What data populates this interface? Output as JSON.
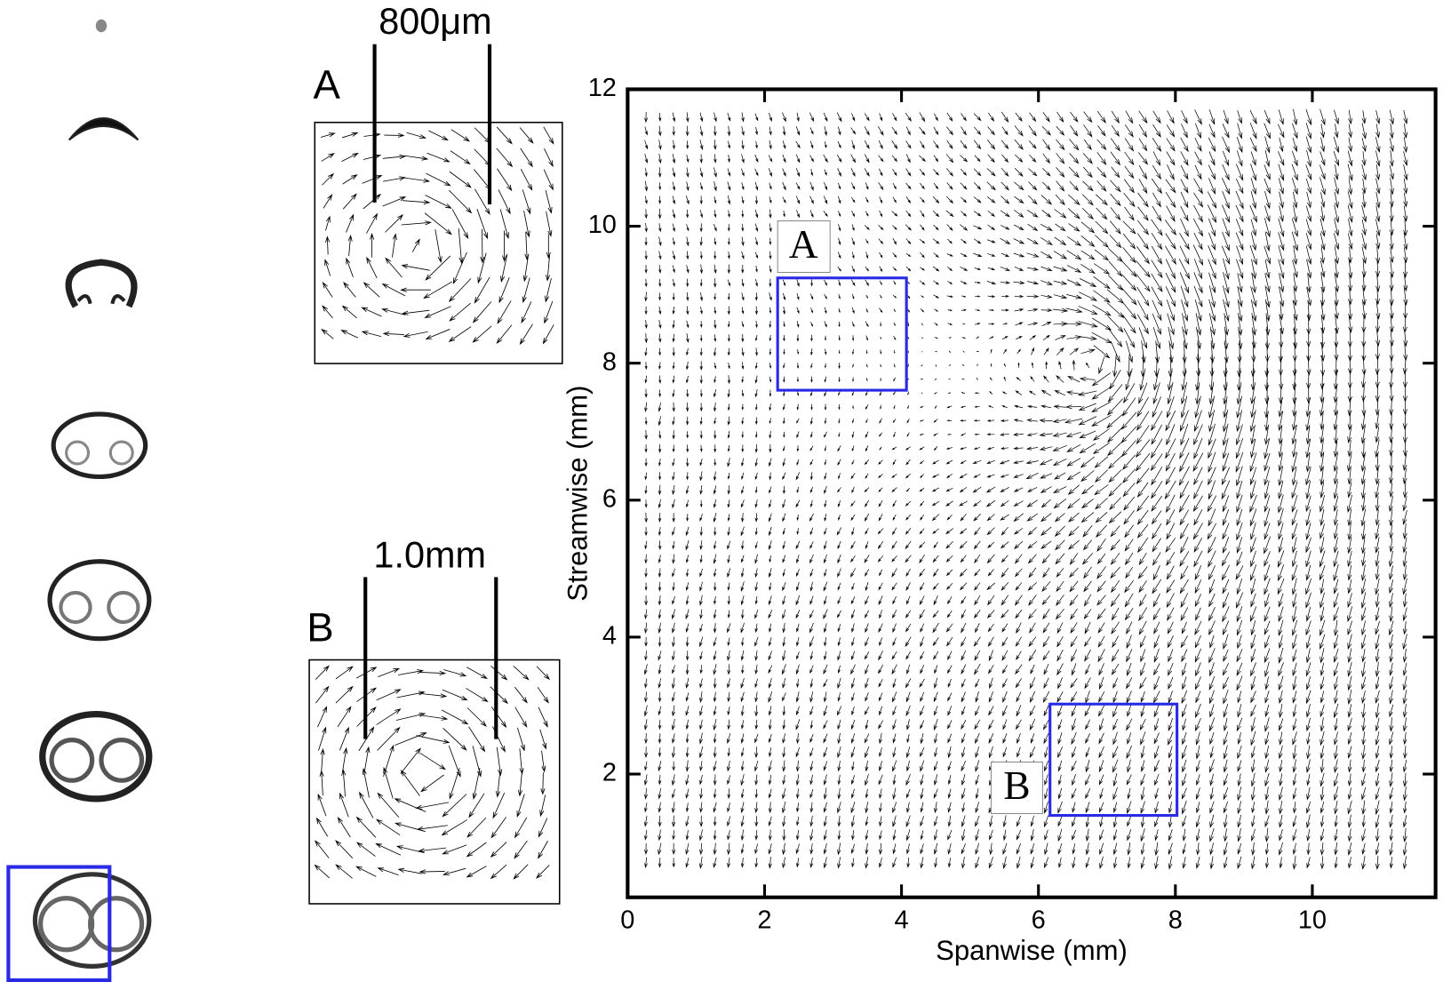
{
  "chart_data": {
    "type": "quiver",
    "xlabel": "Spanwise (mm)",
    "ylabel": "Streamwise (mm)",
    "xlim": [
      0,
      11.8
    ],
    "ylim": [
      0.2,
      12
    ],
    "xticks": [
      0,
      2,
      4,
      6,
      8,
      10
    ],
    "yticks": [
      2,
      4,
      6,
      8,
      10,
      12
    ],
    "annotations": [
      "A",
      "B"
    ]
  },
  "insets": [
    {
      "label": "A",
      "scale": "800μm"
    },
    {
      "label": "B",
      "scale": "1.0mm"
    }
  ]
}
